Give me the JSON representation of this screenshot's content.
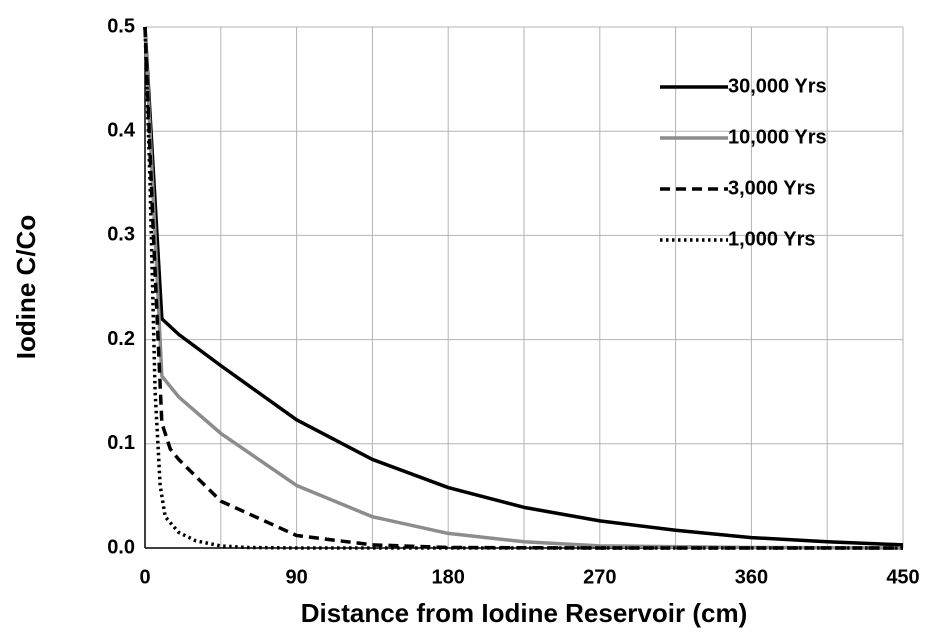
{
  "chart_data": {
    "type": "line",
    "x_label": "Distance from Iodine Reservoir  (cm)",
    "y_label": "Iodine  C/Co",
    "xlim": [
      0,
      450
    ],
    "ylim": [
      0,
      0.5
    ],
    "xticks": [
      0,
      90,
      180,
      270,
      360,
      450
    ],
    "x_minor_grid": [
      45,
      135,
      225,
      315,
      405
    ],
    "yticks": [
      {
        "value": 0,
        "label": "0.0"
      },
      0.1,
      0.2,
      0.3,
      0.4,
      0.5
    ],
    "grid": true,
    "legend": "upper right",
    "series": [
      {
        "name": "30,000 Yrs",
        "color": "#000000",
        "dash": "solid",
        "x": [
          0,
          10,
          20,
          45,
          90,
          135,
          180,
          225,
          270,
          315,
          360,
          405,
          450
        ],
        "values": [
          0.5,
          0.22,
          0.205,
          0.175,
          0.123,
          0.085,
          0.058,
          0.039,
          0.026,
          0.017,
          0.01,
          0.006,
          0.003
        ]
      },
      {
        "name": "10,000 Yrs",
        "color": "#8c8c8c",
        "dash": "solid",
        "x": [
          0,
          10,
          20,
          45,
          90,
          135,
          180,
          225,
          270,
          360,
          450
        ],
        "values": [
          0.5,
          0.165,
          0.145,
          0.11,
          0.06,
          0.03,
          0.014,
          0.006,
          0.002,
          0.0005,
          0
        ]
      },
      {
        "name": "3,000 Yrs",
        "color": "#000000",
        "dash": "dashed",
        "x": [
          0,
          5,
          10,
          15,
          20,
          45,
          90,
          135,
          180,
          270,
          450
        ],
        "values": [
          0.5,
          0.3,
          0.12,
          0.095,
          0.085,
          0.045,
          0.012,
          0.003,
          0.0005,
          0,
          0
        ]
      },
      {
        "name": "1,000 Yrs",
        "color": "#000000",
        "dash": "dotted",
        "x": [
          0,
          3,
          6,
          9,
          12,
          20,
          30,
          45,
          60,
          90,
          450
        ],
        "values": [
          0.5,
          0.35,
          0.15,
          0.06,
          0.03,
          0.015,
          0.007,
          0.002,
          0.0005,
          0,
          0
        ]
      }
    ]
  }
}
